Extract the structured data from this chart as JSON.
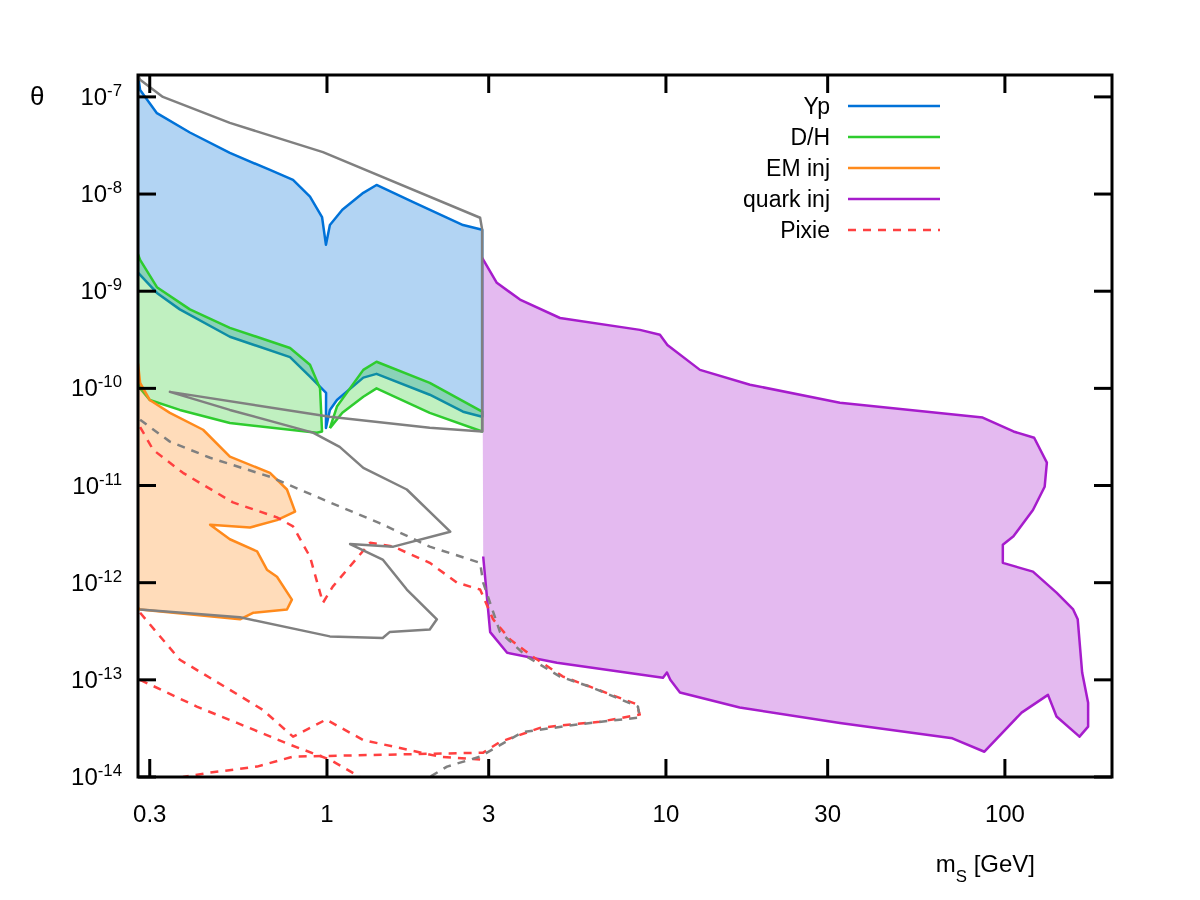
{
  "chart_data": {
    "type": "line",
    "xlabel": "m$_{S}$ [GeV]",
    "ylabel": "θ",
    "log": "xy",
    "legend": "top right",
    "xlim": [
      0.277,
      207
    ],
    "ylim": [
      1e-14,
      1.68e-07
    ],
    "xticks": [
      0.3,
      1,
      3,
      10,
      30,
      100
    ],
    "yticks": [
      {
        "value": 1e-14,
        "label": "10$^{-14}$"
      },
      {
        "value": 1e-13,
        "label": "10$^{-13}$"
      },
      {
        "value": 1e-12,
        "label": "10$^{-12}$"
      },
      {
        "value": 1e-11,
        "label": "10$^{-11}$"
      },
      {
        "value": 1e-10,
        "label": "10$^{-10}$"
      },
      {
        "value": 1e-09,
        "label": "10$^{-9}$"
      },
      {
        "value": 1e-08,
        "label": "10$^{-8}$"
      },
      {
        "value": 1e-07,
        "label": "10$^{-7}$"
      }
    ],
    "series": [
      {
        "name": "Yp",
        "type": "area",
        "color": "#0072d8",
        "x": [
          0.277,
          0.281,
          0.315,
          0.394,
          0.517,
          0.679,
          0.794,
          0.891,
          0.967,
          0.993,
          1.02,
          1.11,
          1.28,
          1.4,
          1.79,
          2.52,
          2.87,
          2.87,
          2.52,
          2.01,
          1.4,
          1.28,
          1.07,
          1.02,
          0.993,
          0.994,
          0.891,
          0.778,
          0.517,
          0.368,
          0.315,
          0.277
        ],
        "values": [
          1.68e-07,
          1.18e-07,
          6.8e-08,
          4.3e-08,
          2.65e-08,
          1.77e-08,
          1.4e-08,
          9.4e-09,
          5.8e-09,
          3e-09,
          4.8e-09,
          6.9e-09,
          1.03e-08,
          1.24e-08,
          8.3e-09,
          4.8e-09,
          4.3e-09,
          5.1e-11,
          5.75e-11,
          8.6e-11,
          1.41e-10,
          1.29e-10,
          7.6e-11,
          6e-11,
          3.9e-11,
          9e-11,
          1.32e-10,
          2.1e-10,
          3.4e-10,
          6.5e-10,
          9.6e-10,
          1.55e-09
        ]
      },
      {
        "name": "D/H",
        "type": "area",
        "color": "#2ecc2e",
        "x": [
          0.277,
          0.281,
          0.315,
          0.394,
          0.517,
          0.778,
          0.891,
          0.954,
          0.967,
          0.934,
          0.517,
          0.368,
          0.3,
          0.281,
          0.277,
          null,
          1.02,
          1.07,
          1.28,
          1.4,
          2.01,
          2.87,
          2.87,
          2.01,
          1.4,
          1.28,
          1.11,
          1.02
        ],
        "values": [
          2.4e-09,
          2.1e-09,
          1.1e-09,
          6.5e-10,
          4.2e-10,
          2.6e-10,
          1.75e-10,
          1e-10,
          3.6e-11,
          3.5e-11,
          4.4e-11,
          6e-11,
          7.6e-11,
          1e-10,
          1.2e-10,
          null,
          3.9e-11,
          6.5e-11,
          1.55e-10,
          1.88e-10,
          1.14e-10,
          5.75e-11,
          3.6e-11,
          5.6e-11,
          1e-10,
          8.2e-11,
          5.6e-11,
          3.9e-11
        ]
      },
      {
        "name": "EM inj",
        "type": "area",
        "color": "#ff8a1c",
        "x": [
          0.277,
          0.281,
          0.3,
          0.344,
          0.431,
          0.517,
          0.679,
          0.762,
          0.805,
          0.712,
          0.593,
          0.452,
          0.517,
          0.622,
          0.665,
          0.712,
          0.788,
          0.762,
          0.605,
          0.554,
          0.281,
          0.277
        ],
        "values": [
          1.8e-10,
          1.14e-10,
          7.6e-11,
          5.6e-11,
          3.75e-11,
          1.98e-11,
          1.35e-11,
          9.1e-12,
          5.4e-12,
          4.4e-12,
          3.7e-12,
          3.95e-12,
          2.8e-12,
          2.1e-12,
          1.36e-12,
          1.15e-12,
          6.7e-13,
          5.3e-13,
          4.9e-13,
          4.2e-13,
          5.3e-13,
          5.5e-13
        ]
      },
      {
        "name": "quark inj",
        "type": "area",
        "color": "#a61ccc",
        "x": [
          2.87,
          3.17,
          3.71,
          4.87,
          8.38,
          9.6,
          10.1,
          12.6,
          17.7,
          32.6,
          86,
          106,
          122,
          133,
          131,
          121,
          106,
          98.6,
          98.6,
          121,
          142,
          159,
          164,
          169,
          176,
          176,
          166,
          142,
          134,
          112,
          87,
          70,
          32.6,
          16.5,
          11,
          10.3,
          10.07,
          9.8,
          4.77,
          3.4,
          3.03,
          2.89
        ],
        "values": [
          2.2e-09,
          1.22e-09,
          8.2e-10,
          5.3e-10,
          4e-10,
          3.56e-10,
          2.8e-10,
          1.55e-10,
          1.09e-10,
          7.1e-11,
          5e-11,
          3.6e-11,
          3.1e-11,
          1.72e-11,
          9.7e-12,
          5.6e-12,
          3e-12,
          2.46e-12,
          1.6e-12,
          1.3e-12,
          7.9e-13,
          5.3e-13,
          4.2e-13,
          1.19e-13,
          5.8e-14,
          3.3e-14,
          2.6e-14,
          4.2e-14,
          7e-14,
          4.6e-14,
          1.82e-14,
          2.5e-14,
          3.6e-14,
          5.2e-14,
          7.4e-14,
          1e-13,
          1.19e-13,
          1.05e-13,
          1.5e-13,
          1.9e-13,
          3.1e-13,
          1.86e-12
        ]
      },
      {
        "name": "Pixie",
        "line_style": "dashed",
        "color": "#ff4040",
        "x": [
          0.281,
          0.307,
          0.376,
          0.528,
          0.712,
          0.794,
          0.891,
          0.973,
          1.04,
          1.34,
          1.57,
          2.01,
          2.42,
          2.83,
          3.09,
          3.47,
          4.05,
          4.97,
          5.97,
          8.2,
          8.37,
          6.38,
          5.32,
          4.25,
          3.24,
          2.89,
          0.794,
          0.622,
          0.452,
          0.376
        ],
        "values": [
          4e-11,
          2.33e-11,
          1.35e-11,
          6.7e-12,
          4.7e-12,
          3.8e-12,
          1.85e-12,
          6.2e-13,
          9.1e-13,
          2.58e-12,
          2.35e-12,
          1.6e-12,
          1e-12,
          8.5e-13,
          4.2e-13,
          2.6e-13,
          1.73e-13,
          1.08e-13,
          8.5e-14,
          5.6e-14,
          4.4e-14,
          3.7e-14,
          3.5e-14,
          3.2e-14,
          2.3e-14,
          1.78e-14,
          1.62e-14,
          1.28e-14,
          1.11e-14,
          1e-14
        ]
      },
      {
        "line_style": "dashed",
        "color": "#ff4040",
        "x": [
          0.281,
          0.368,
          0.517,
          0.647,
          0.794,
          0.994,
          1.28,
          2.15,
          2.83
        ],
        "values": [
          4.9e-13,
          1.61e-13,
          7.9e-14,
          4.9e-14,
          2.6e-14,
          3.9e-14,
          2.4e-14,
          1.62e-14,
          1.51e-14
        ]
      },
      {
        "line_style": "dashed",
        "color": "#ff4040",
        "x": [
          0.281,
          0.413,
          0.543,
          0.778,
          1.02,
          1.25
        ],
        "values": [
          1e-13,
          5.3e-14,
          3.6e-14,
          2.15e-14,
          1.51e-14,
          1e-14
        ]
      },
      {
        "color": "#808080",
        "x": [
          0.277,
          0.281,
          0.328,
          0.517,
          0.973,
          2.83,
          2.87,
          2.87,
          2.01,
          1.02,
          0.344,
          0.517,
          0.909,
          1.09,
          1.28,
          1.72,
          2.31,
          1.57,
          1.17,
          1.46,
          1.72,
          2.11,
          2.01,
          1.53,
          1.46,
          1.02,
          0.554,
          0.281
        ],
        "values": [
          1.68e-07,
          1.5e-07,
          1e-07,
          5.4e-08,
          2.7e-08,
          5.7e-09,
          4.3e-09,
          3.6e-11,
          3.94e-11,
          5.1e-11,
          9.2e-11,
          6e-11,
          3.5e-11,
          2.5e-11,
          1.52e-11,
          9.1e-12,
          3.35e-12,
          2.35e-12,
          2.5e-12,
          1.73e-12,
          8.5e-13,
          4.2e-13,
          3.3e-13,
          3.1e-13,
          2.7e-13,
          2.8e-13,
          4.4e-13,
          5.3e-13
        ]
      },
      {
        "line_style": "dashed",
        "color": "#808080",
        "x": [
          0.281,
          0.344,
          0.452,
          0.679,
          1.02,
          1.43,
          2.01,
          2.83,
          2.89,
          3.24,
          3.89,
          4.87,
          5.97,
          8.27,
          8.37,
          5.58,
          3.78,
          2.83,
          2.26,
          2.01
        ],
        "values": [
          4.75e-11,
          2.83e-11,
          1.93e-11,
          1.23e-11,
          6.7e-12,
          4.1e-12,
          2.35e-12,
          1.6e-12,
          1e-12,
          3.1e-13,
          1.73e-13,
          1.08e-13,
          8.5e-14,
          5.3e-14,
          4.1e-14,
          3.5e-14,
          2.9e-14,
          1.62e-14,
          1.28e-14,
          1e-14
        ]
      }
    ]
  }
}
